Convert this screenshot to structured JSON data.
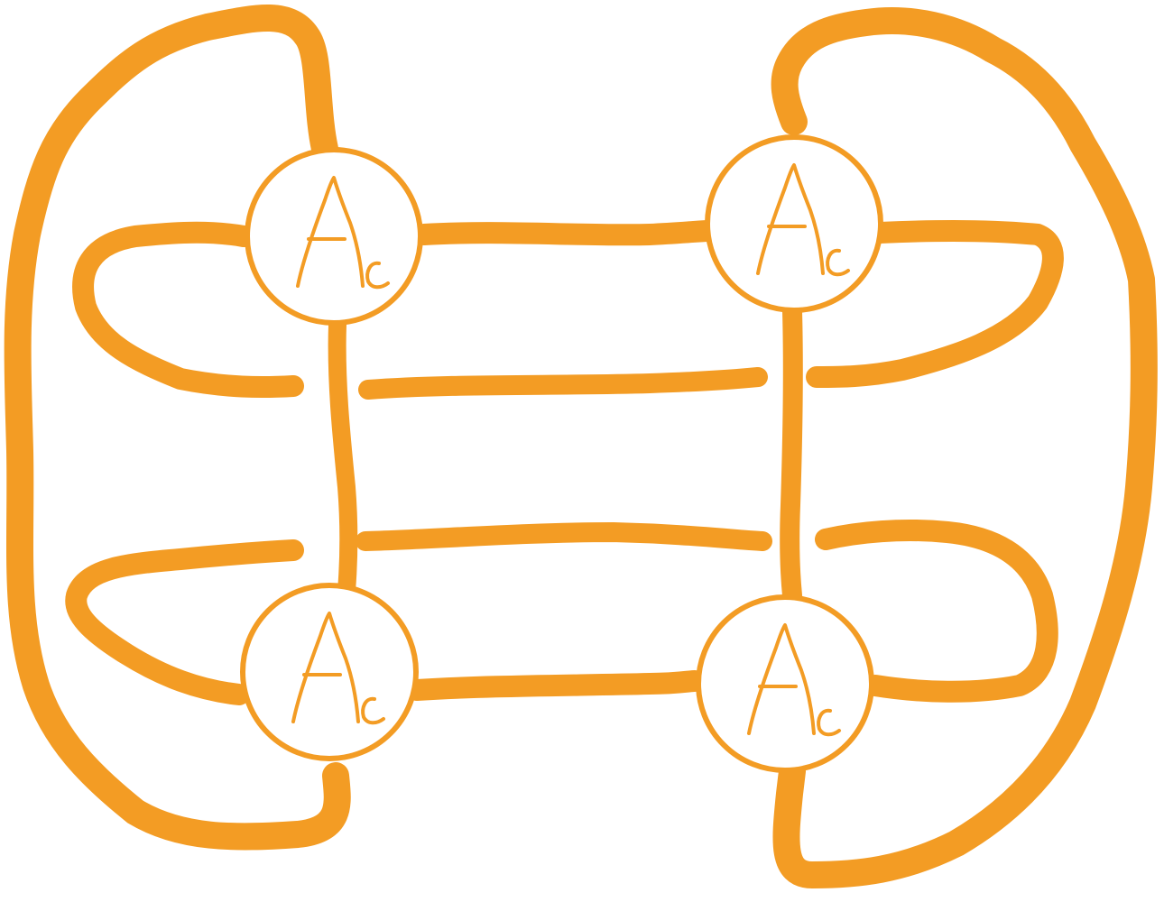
{
  "diagram": {
    "color": "#F39C24",
    "background": "#FFFFFF",
    "node_label": "Ac",
    "nodes": [
      {
        "id": "top-left",
        "label": "Ac"
      },
      {
        "id": "top-right",
        "label": "Ac"
      },
      {
        "id": "bottom-left",
        "label": "Ac"
      },
      {
        "id": "bottom-right",
        "label": "Ac"
      }
    ],
    "edges": [
      {
        "from": "top-left",
        "to": "top-right"
      },
      {
        "from": "top-left",
        "to": "bottom-left"
      },
      {
        "from": "top-right",
        "to": "bottom-right"
      },
      {
        "from": "bottom-left",
        "to": "bottom-right"
      },
      {
        "from": "top-left",
        "to": "bottom-left",
        "route": "outer-left"
      },
      {
        "from": "top-right",
        "to": "bottom-right",
        "route": "outer-right"
      }
    ]
  }
}
